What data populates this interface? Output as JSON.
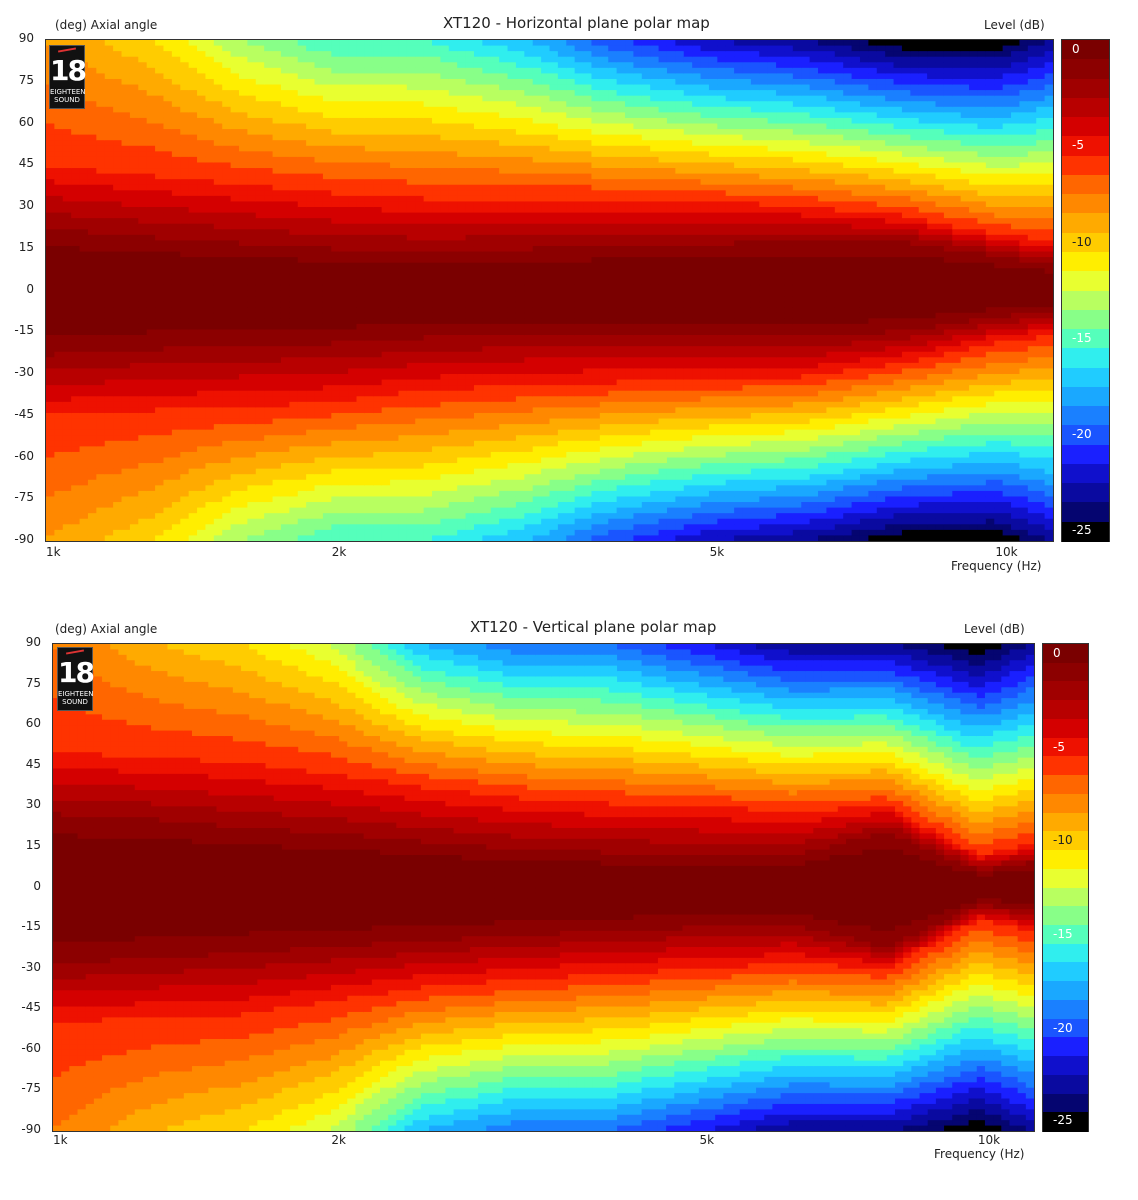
{
  "charts": [
    {
      "title": "XT120 - Horizontal plane polar map",
      "y_label": "(deg)  Axial angle",
      "level_label": "Level  (dB)",
      "x_label": "Frequency  (Hz)",
      "y_ticks": [
        "90",
        "75",
        "60",
        "45",
        "30",
        "15",
        "0",
        "-15",
        "-30",
        "-45",
        "-60",
        "-75",
        "-90"
      ],
      "x_ticks": [
        "1k",
        "2k",
        "5k",
        "10k"
      ],
      "colorbar_ticks": [
        "0",
        "-5",
        "-10",
        "-15",
        "-20",
        "-25"
      ]
    },
    {
      "title": "XT120 - Vertical plane polar map",
      "y_label": "(deg)  Axial angle",
      "level_label": "Level  (dB)",
      "x_label": "Frequency  (Hz)",
      "y_ticks": [
        "90",
        "75",
        "60",
        "45",
        "30",
        "15",
        "0",
        "-15",
        "-30",
        "-45",
        "-60",
        "-75",
        "-90"
      ],
      "x_ticks": [
        "1k",
        "2k",
        "5k",
        "10k"
      ],
      "colorbar_ticks": [
        "0",
        "-5",
        "-10",
        "-15",
        "-20",
        "-25"
      ]
    }
  ],
  "logo": {
    "number": "18",
    "text_line1": "EIGHTEEN",
    "text_line2": "SOUND"
  },
  "colors": {
    "scale": [
      "#7a0000",
      "#8c0000",
      "#a00000",
      "#b80000",
      "#d40000",
      "#ee1100",
      "#ff3300",
      "#ff6600",
      "#ff8800",
      "#ffaa00",
      "#ffcc00",
      "#ffee00",
      "#e8ff30",
      "#b8ff60",
      "#88ff88",
      "#55ffbb",
      "#30eeee",
      "#20ccff",
      "#1aa8ff",
      "#1a80ff",
      "#1a55ff",
      "#1a20ff",
      "#1010cc",
      "#0a0aa0",
      "#050570",
      "#000000"
    ]
  },
  "chart_data": [
    {
      "type": "heatmap",
      "title": "XT120 - Horizontal plane polar map",
      "xlabel": "Frequency  (Hz)",
      "ylabel": "(deg)  Axial angle",
      "colorbar_label": "Level  (dB)",
      "x_scale": "log",
      "xlim": [
        1000,
        11500
      ],
      "ylim": [
        -90,
        90
      ],
      "x_ticks": [
        1000,
        2000,
        5000,
        10000
      ],
      "y_ticks": [
        90,
        75,
        60,
        45,
        30,
        15,
        0,
        -15,
        -30,
        -45,
        -60,
        -75,
        -90
      ],
      "zlim": [
        -26,
        0
      ],
      "colorbar_ticks": [
        0,
        -5,
        -10,
        -15,
        -20,
        -25
      ],
      "frequencies": [
        1000,
        1300,
        1600,
        2000,
        2500,
        3200,
        4000,
        5000,
        6300,
        8000,
        10000,
        11500
      ],
      "minus3db_half_angle_upper": [
        21,
        18,
        16,
        14,
        13,
        14,
        15,
        16,
        17,
        17,
        12,
        9
      ],
      "minus3db_half_angle_lower": [
        22,
        20,
        19,
        18,
        16,
        15,
        15,
        15,
        16,
        14,
        9,
        7
      ],
      "minus6db_half_angle_upper": [
        45,
        41,
        38,
        35,
        33,
        33,
        33,
        32,
        30,
        27,
        20,
        18
      ],
      "minus6db_half_angle_lower": [
        45,
        43,
        42,
        40,
        36,
        34,
        33,
        32,
        31,
        26,
        19,
        16
      ],
      "level_at_90_upper_db": [
        -9,
        -11,
        -14,
        -16,
        -16,
        -18,
        -21,
        -23,
        -24,
        -26,
        -26,
        -24
      ]
    },
    {
      "type": "heatmap",
      "title": "XT120 - Vertical plane polar map",
      "xlabel": "Frequency  (Hz)",
      "ylabel": "(deg)  Axial angle",
      "colorbar_label": "Level  (dB)",
      "x_scale": "log",
      "xlim": [
        1000,
        11500
      ],
      "ylim": [
        -90,
        90
      ],
      "x_ticks": [
        1000,
        2000,
        5000,
        10000
      ],
      "y_ticks": [
        90,
        75,
        60,
        45,
        30,
        15,
        0,
        -15,
        -30,
        -45,
        -60,
        -75,
        -90
      ],
      "zlim": [
        -26,
        0
      ],
      "colorbar_ticks": [
        0,
        -5,
        -10,
        -15,
        -20,
        -25
      ],
      "frequencies": [
        1000,
        1300,
        1600,
        2000,
        2500,
        3200,
        4000,
        5000,
        6300,
        8000,
        10000,
        11500
      ],
      "minus3db_half_angle_upper": [
        26,
        24,
        21,
        19,
        16,
        13,
        12,
        11,
        11,
        20,
        6,
        9
      ],
      "minus3db_half_angle_lower": [
        27,
        25,
        23,
        21,
        19,
        17,
        15,
        14,
        13,
        22,
        6,
        8
      ],
      "minus6db_half_angle_upper": [
        50,
        48,
        46,
        42,
        37,
        33,
        31,
        30,
        28,
        30,
        12,
        16
      ],
      "minus6db_half_angle_lower": [
        50,
        48,
        47,
        42,
        37,
        34,
        32,
        30,
        28,
        30,
        12,
        16
      ],
      "level_at_90_upper_db": [
        -8,
        -10,
        -11,
        -13,
        -18,
        -20,
        -20,
        -22,
        -24,
        -24,
        -26,
        -24
      ]
    }
  ]
}
